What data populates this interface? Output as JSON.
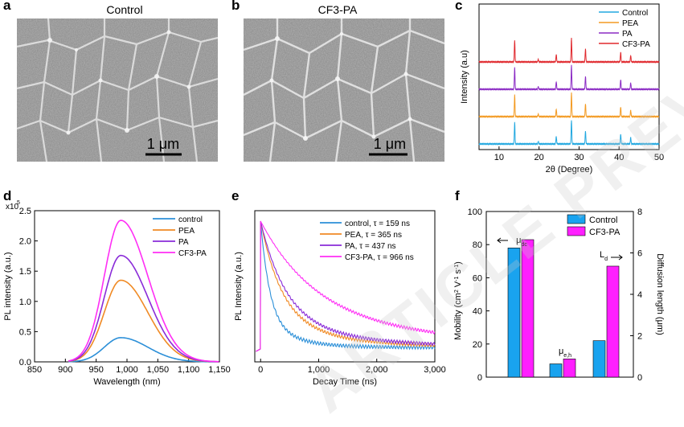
{
  "panels": {
    "a": {
      "letter": "a",
      "title": "Control",
      "scale_label": "1 μm"
    },
    "b": {
      "letter": "b",
      "title": "CF3-PA",
      "scale_label": "1 μm"
    },
    "c": {
      "letter": "c"
    },
    "d": {
      "letter": "d"
    },
    "e": {
      "letter": "e"
    },
    "f": {
      "letter": "f"
    }
  },
  "colors": {
    "control": "#2b8fd8",
    "pea": "#f08a24",
    "pa": "#8a2bd8",
    "cf3pa": "#ff2ef5",
    "xrd_control": "#22a8e0",
    "xrd_pea": "#f39a22",
    "xrd_pa": "#8b2bc4",
    "xrd_cf3pa": "#e0282d",
    "bar_control": "#19a3ef",
    "bar_cf3pa": "#ff1fff"
  },
  "watermark": "ARTICLE PREVIEW",
  "chart_data": [
    {
      "id": "c",
      "type": "line",
      "title": "",
      "xlabel": "2θ (Degree)",
      "ylabel": "Intensity (a.u)",
      "xlim": [
        5,
        50
      ],
      "xticks": [
        10,
        20,
        30,
        40,
        50
      ],
      "peaks": [
        13.9,
        19.8,
        24.3,
        28.1,
        31.6,
        40.4,
        42.9
      ],
      "peak_heights": [
        1.0,
        0.12,
        0.35,
        1.1,
        0.6,
        0.45,
        0.3
      ],
      "series": [
        {
          "name": "Control",
          "offset": 0,
          "color_key": "xrd_control"
        },
        {
          "name": "PEA",
          "offset": 1,
          "color_key": "xrd_pea"
        },
        {
          "name": "PA",
          "offset": 2,
          "color_key": "xrd_pa"
        },
        {
          "name": "CF3-PA",
          "offset": 3,
          "color_key": "xrd_cf3pa"
        }
      ]
    },
    {
      "id": "d",
      "type": "line",
      "xlabel": "Wavelength (nm)",
      "ylabel": "PL intensity (a.u.)",
      "multiplier": "x10",
      "multiplier_exp": "5",
      "xlim": [
        850,
        1150
      ],
      "ylim": [
        0,
        2.5
      ],
      "xticks": [
        "850",
        "900",
        "950",
        "1,000",
        "1,050",
        "1,100",
        "1,150"
      ],
      "yticks": [
        "0.0",
        "0.5",
        "1.0",
        "1.5",
        "2.0",
        "2.5"
      ],
      "series": [
        {
          "name": "control",
          "peak_nm": 990,
          "peak": 0.4,
          "color_key": "control"
        },
        {
          "name": "PEA",
          "peak_nm": 990,
          "peak": 1.35,
          "color_key": "pea"
        },
        {
          "name": "PA",
          "peak_nm": 990,
          "peak": 1.76,
          "color_key": "pa"
        },
        {
          "name": "CF3-PA",
          "peak_nm": 990,
          "peak": 2.34,
          "color_key": "cf3pa"
        }
      ]
    },
    {
      "id": "e",
      "type": "line",
      "xlabel": "Decay Time (ns)",
      "ylabel": "PL Intensity (a.u.)",
      "xlim": [
        -100,
        3000
      ],
      "xticks": [
        "0",
        "1,000",
        "2,000",
        "3,000"
      ],
      "series": [
        {
          "name": "control, τ = 159 ns",
          "tau": 159,
          "color_key": "control"
        },
        {
          "name": "PEA, τ = 365 ns",
          "tau": 365,
          "color_key": "pea"
        },
        {
          "name": "PA, τ = 437 ns",
          "tau": 437,
          "color_key": "pa"
        },
        {
          "name": "CF3-PA, τ = 966 ns",
          "tau": 966,
          "color_key": "cf3pa"
        }
      ]
    },
    {
      "id": "f",
      "type": "bar",
      "ylabel": "Mobility (cm² V⁻¹ s⁻¹)",
      "ylabel_parts": {
        "base": "Mobility (cm",
        "sup1": "2",
        "mid1": " V",
        "sup2": "-1",
        "mid2": " s",
        "sup3": "-1",
        "end": ")"
      },
      "y2label": "Diffusion length (μm)",
      "ylim": [
        0,
        100
      ],
      "yticks": [
        "0",
        "20",
        "40",
        "60",
        "80",
        "100"
      ],
      "y2lim": [
        0,
        8
      ],
      "y2ticks": [
        "0",
        "2",
        "4",
        "6",
        "8"
      ],
      "groups": [
        "μdc",
        "μe,h",
        "Ld"
      ],
      "group_labels": {
        "mu_dc": "μ",
        "mu_dc_sub": "dc",
        "mu_eh": "μ",
        "mu_eh_sub": "e,h",
        "ld": "L",
        "ld_sub": "d"
      },
      "series": [
        {
          "name": "Control",
          "values": [
            78,
            8,
            22
          ],
          "color_key": "bar_control"
        },
        {
          "name": "CF3-PA",
          "values": [
            83,
            11,
            67
          ],
          "color_key": "bar_cf3pa"
        }
      ]
    }
  ]
}
